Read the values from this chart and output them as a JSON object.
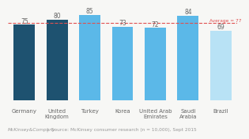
{
  "categories": [
    "Germany",
    "United\nKingdom",
    "Turkey",
    "Korea",
    "United Arab\nEmirates",
    "Saudi\nArabia",
    "Brazil"
  ],
  "values": [
    75,
    80,
    85,
    73,
    72,
    84,
    69
  ],
  "bar_colors": [
    "#1e5270",
    "#1e5270",
    "#5bb8e8",
    "#5bb8e8",
    "#5bb8e8",
    "#5bb8e8",
    "#b8e2f5"
  ],
  "average": 77,
  "average_label": "Average = 77",
  "average_line_color": "#e05050",
  "ylim_min": 0,
  "ylim_max": 92,
  "footer_left": "McKinsey&Company",
  "footer_sep": "|",
  "footer_right": "Source: McKinsey consumer research (n = 10,000), Sept 2015",
  "value_fontsize": 5.5,
  "label_fontsize": 5.0,
  "footer_fontsize": 4.2,
  "bg_color": "#f7f7f5"
}
